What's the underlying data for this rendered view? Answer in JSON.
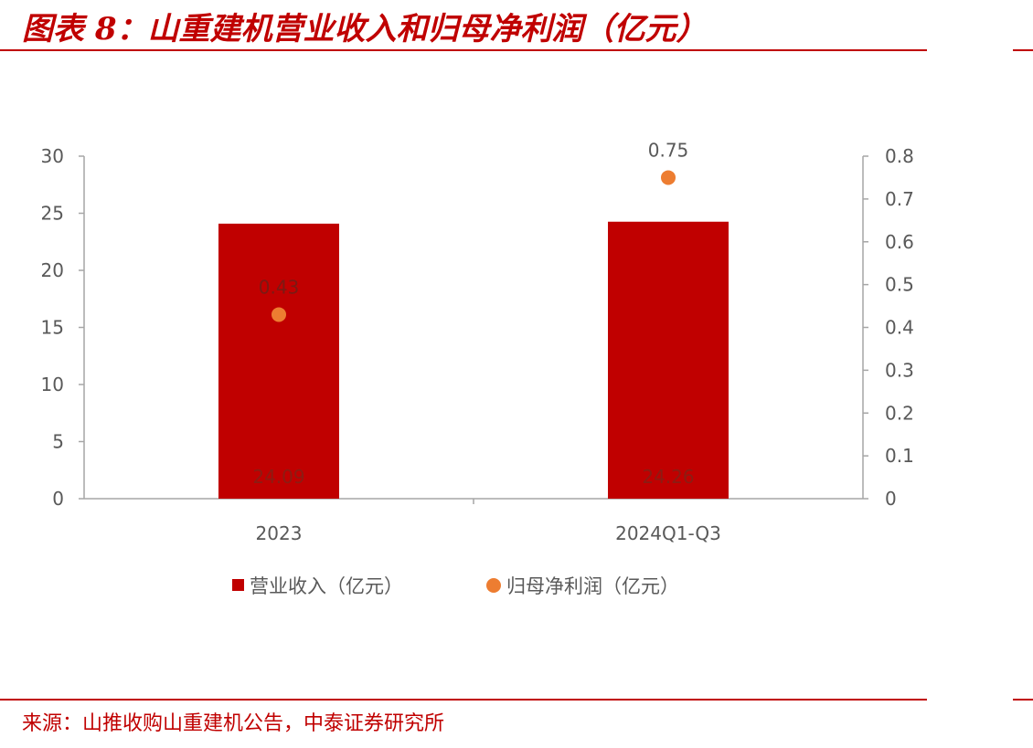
{
  "title": "图表 8：山重建机营业收入和归母净利润（亿元）",
  "source": "来源：山推收购山重建机公告，中泰证券研究所",
  "colors": {
    "accent": "#c00000",
    "bar": "#c00000",
    "dot": "#ed7d31",
    "axis": "#a6a6a6",
    "tick_text": "#595959"
  },
  "chart_data": {
    "type": "bar",
    "categories": [
      "2023",
      "2024Q1-Q3"
    ],
    "series": [
      {
        "name": "营业收入（亿元）",
        "kind": "bar",
        "axis": "left",
        "values": [
          24.09,
          24.26
        ],
        "labels": [
          "24.09",
          "24.26"
        ]
      },
      {
        "name": "归母净利润（亿元）",
        "kind": "scatter",
        "axis": "right",
        "values": [
          0.43,
          0.75
        ],
        "labels": [
          "0.43",
          "0.75"
        ]
      }
    ],
    "left_axis": {
      "ylim": [
        0,
        30
      ],
      "ticks": [
        "0",
        "5",
        "10",
        "15",
        "20",
        "25",
        "30"
      ]
    },
    "right_axis": {
      "ylim": [
        0,
        0.8
      ],
      "ticks": [
        "0",
        "0.1",
        "0.2",
        "0.3",
        "0.4",
        "0.5",
        "0.6",
        "0.7",
        "0.8"
      ]
    },
    "legend": "bottom",
    "grid": false
  }
}
